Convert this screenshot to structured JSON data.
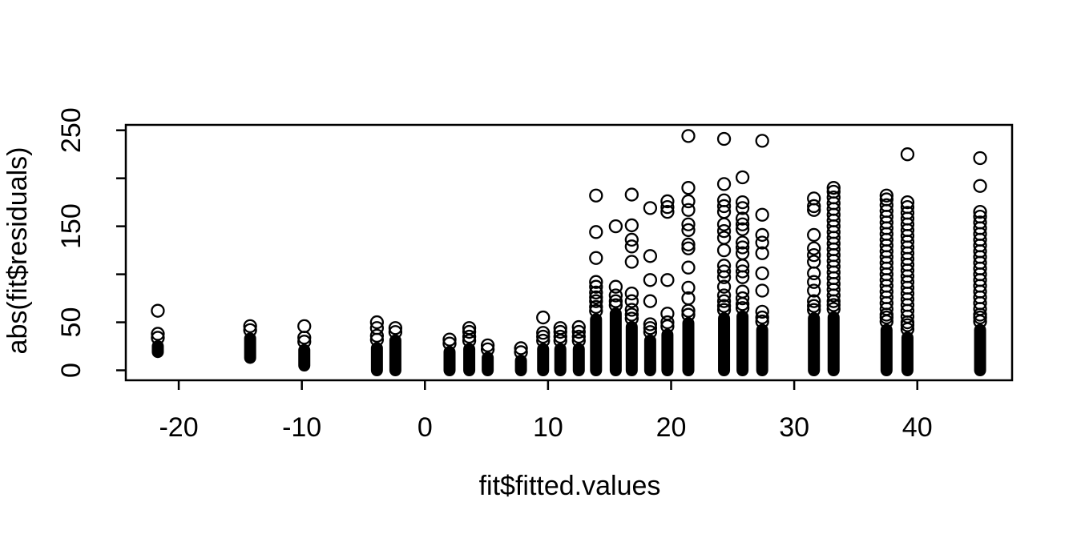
{
  "page": {
    "background_color": "#ffffff",
    "foreground_color": "#000000"
  },
  "chart_data": {
    "type": "scatter",
    "title": "",
    "xlabel": "fit$fitted.values",
    "ylabel": "abs(fit$residuals)",
    "marker": "open-circle",
    "marker_color": "#000000",
    "marker_radius": 7.5,
    "marker_stroke_width": 2.3,
    "grid": false,
    "legend": "none",
    "xlim": [
      -24.3,
      47.7
    ],
    "ylim": [
      -10.4,
      255.6
    ],
    "x_ticks": [
      -20,
      -10,
      0,
      10,
      20,
      30,
      40
    ],
    "x_tick_labels": [
      "-20",
      "-10",
      "0",
      "10",
      "20",
      "30",
      "40"
    ],
    "y_ticks": [
      0,
      50,
      100,
      150,
      200,
      250
    ],
    "y_tick_labels": [
      "0",
      "50",
      "",
      "150",
      "",
      "250"
    ],
    "columns": [
      {
        "x": -21.7,
        "dense": [
          19,
          38
        ],
        "outliers": [
          62
        ]
      },
      {
        "x": -14.2,
        "dense": [
          13,
          46
        ],
        "outliers": []
      },
      {
        "x": -9.8,
        "dense": [
          5,
          34
        ],
        "outliers": [
          46
        ]
      },
      {
        "x": -3.9,
        "dense": [
          0,
          36
        ],
        "outliers": [
          44,
          50
        ]
      },
      {
        "x": -2.4,
        "dense": [
          0,
          44
        ],
        "outliers": []
      },
      {
        "x": 2.0,
        "dense": [
          0,
          32
        ],
        "outliers": []
      },
      {
        "x": 3.6,
        "dense": [
          0,
          35
        ],
        "outliers": [
          40,
          44
        ]
      },
      {
        "x": 5.1,
        "dense": [
          0,
          26
        ],
        "outliers": []
      },
      {
        "x": 7.8,
        "dense": [
          0,
          23
        ],
        "outliers": []
      },
      {
        "x": 9.6,
        "dense": [
          0,
          35
        ],
        "outliers": [
          39,
          55
        ]
      },
      {
        "x": 11.0,
        "dense": [
          0,
          35
        ],
        "outliers": [
          40,
          44
        ]
      },
      {
        "x": 12.5,
        "dense": [
          0,
          35
        ],
        "outliers": [
          40,
          45
        ]
      },
      {
        "x": 13.9,
        "dense": [
          0,
          66
        ],
        "outliers": [
          72,
          76,
          81,
          87,
          92,
          117,
          144,
          182
        ]
      },
      {
        "x": 15.5,
        "dense": [
          0,
          72
        ],
        "outliers": [
          78,
          87,
          150
        ]
      },
      {
        "x": 16.8,
        "dense": [
          0,
          58
        ],
        "outliers": [
          63,
          72,
          80,
          113,
          129,
          136,
          151,
          183
        ]
      },
      {
        "x": 18.3,
        "dense": [
          0,
          44
        ],
        "outliers": [
          48,
          72,
          94,
          119,
          169
        ]
      },
      {
        "x": 19.7,
        "dense": [
          0,
          50
        ],
        "outliers": [
          59,
          94,
          165,
          170,
          176
        ]
      },
      {
        "x": 21.4,
        "dense": [
          0,
          62
        ],
        "outliers": [
          75,
          86,
          107,
          127,
          131,
          146,
          152,
          167,
          176,
          190,
          244
        ]
      },
      {
        "x": 24.3,
        "dense": [
          0,
          67
        ],
        "outliers": [
          72,
          78,
          87,
          97,
          103,
          109,
          125,
          138,
          145,
          152,
          165,
          171,
          177,
          194,
          241
        ]
      },
      {
        "x": 25.8,
        "dense": [
          0,
          69
        ],
        "outliers": [
          75,
          82,
          97,
          103,
          109,
          122,
          128,
          133,
          147,
          152,
          158,
          169,
          175,
          201
        ]
      },
      {
        "x": 27.4,
        "dense": [
          0,
          55
        ],
        "outliers": [
          61,
          83,
          101,
          122,
          133,
          141,
          162,
          239
        ]
      },
      {
        "x": 31.6,
        "dense": [
          0,
          67
        ],
        "outliers": [
          72,
          83,
          92,
          101,
          113,
          120,
          127,
          141,
          167,
          171,
          179
        ]
      },
      {
        "x": 33.2,
        "dense": [
          0,
          68
        ],
        "outliers": [
          72,
          78,
          84,
          90,
          96,
          102,
          108,
          114,
          120,
          126,
          132,
          138,
          144,
          150,
          156,
          162,
          168,
          174,
          180,
          186,
          190
        ]
      },
      {
        "x": 37.5,
        "dense": [
          0,
          55
        ],
        "outliers": [
          58,
          64,
          70,
          76,
          82,
          88,
          94,
          100,
          106,
          112,
          118,
          124,
          130,
          136,
          142,
          148,
          154,
          160,
          166,
          172,
          178,
          182
        ]
      },
      {
        "x": 39.2,
        "dense": [
          0,
          47
        ],
        "outliers": [
          50,
          56,
          62,
          68,
          74,
          80,
          86,
          92,
          98,
          104,
          110,
          116,
          122,
          128,
          134,
          140,
          146,
          152,
          158,
          164,
          170,
          175,
          225
        ]
      },
      {
        "x": 45.1,
        "dense": [
          0,
          55
        ],
        "outliers": [
          58,
          64,
          70,
          76,
          82,
          88,
          94,
          100,
          106,
          112,
          118,
          124,
          130,
          136,
          142,
          148,
          154,
          160,
          165,
          192,
          221
        ]
      }
    ]
  }
}
